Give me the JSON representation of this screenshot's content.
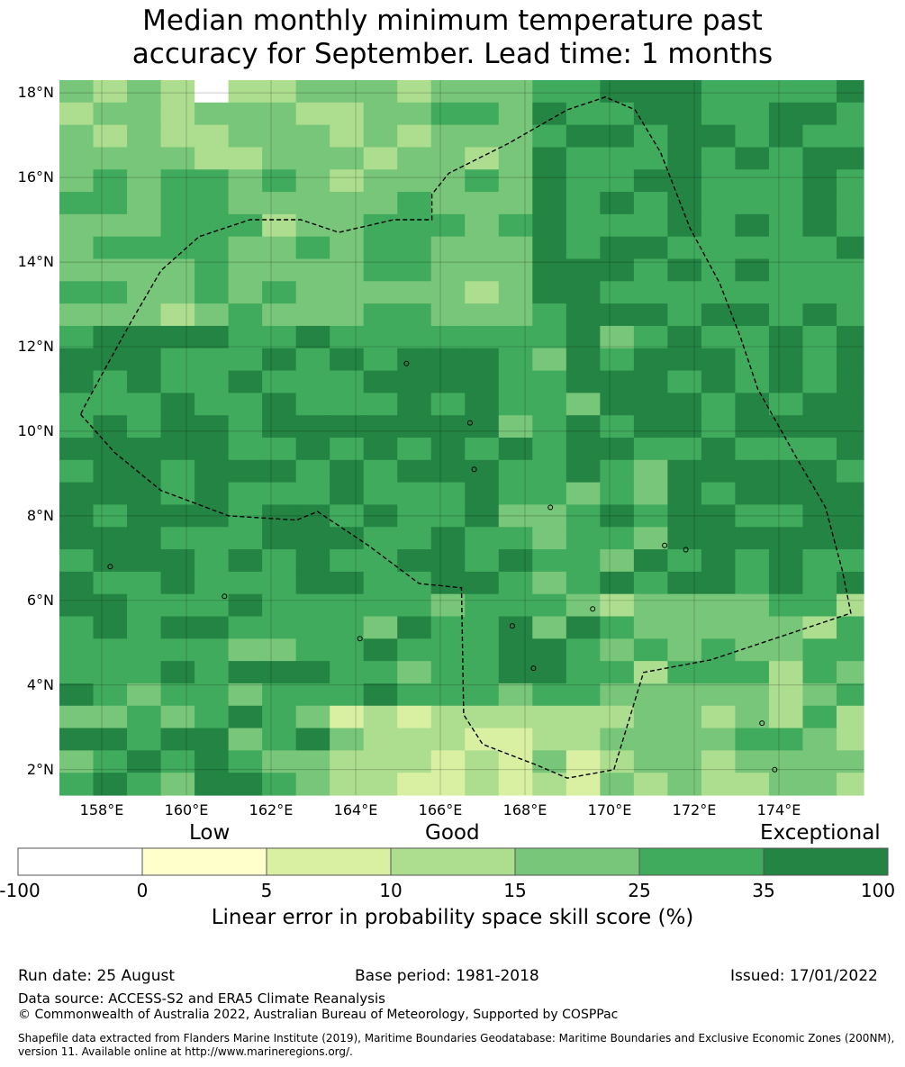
{
  "title": {
    "line1": "Median monthly minimum temperature past",
    "line2": "accuracy for September. Lead time: 1 months"
  },
  "map": {
    "lon_range": [
      157.0,
      176.0
    ],
    "lat_range": [
      1.4,
      18.3
    ],
    "y_ticks": [
      "18°N",
      "16°N",
      "14°N",
      "12°N",
      "10°N",
      "8°N",
      "6°N",
      "4°N",
      "2°N"
    ],
    "y_tick_values": [
      18,
      16,
      14,
      12,
      10,
      8,
      6,
      4,
      2
    ],
    "x_ticks": [
      "158°E",
      "160°E",
      "162°E",
      "164°E",
      "166°E",
      "168°E",
      "170°E",
      "172°E",
      "174°E"
    ],
    "x_tick_values": [
      158,
      160,
      162,
      164,
      166,
      168,
      170,
      172,
      174
    ],
    "grid": true,
    "boundary_style": "dashed",
    "colors": [
      "#ffffff",
      "#ffffcc",
      "#d9f0a3",
      "#addd8e",
      "#78c679",
      "#41ab5d",
      "#238443"
    ]
  },
  "colorbar": {
    "head_low": "Low",
    "head_good": "Good",
    "head_exceptional": "Exceptional",
    "ticks": [
      "-100",
      "0",
      "5",
      "10",
      "15",
      "25",
      "35",
      "100"
    ],
    "label": "Linear error in probability space skill score (%)"
  },
  "footer": {
    "run_date": "Run date: 25 August",
    "base_period": "Base period: 1981-2018",
    "issued": "Issued: 17/01/2022",
    "data_source": "Data source: ACCESS-S2 and ERA5 Climate Reanalysis",
    "copyright": "© Commonwealth of Australia 2022, Australian Bureau of Meteorology, Supported by COSPPac",
    "shapefile": "Shapefile data extracted from Flanders Marine Institute (2019), Maritime Boundaries Geodatabase: Maritime Boundaries and Exclusive Economic Zones (200NM), version 11. Available online at http://www.marineregions.org/."
  }
}
